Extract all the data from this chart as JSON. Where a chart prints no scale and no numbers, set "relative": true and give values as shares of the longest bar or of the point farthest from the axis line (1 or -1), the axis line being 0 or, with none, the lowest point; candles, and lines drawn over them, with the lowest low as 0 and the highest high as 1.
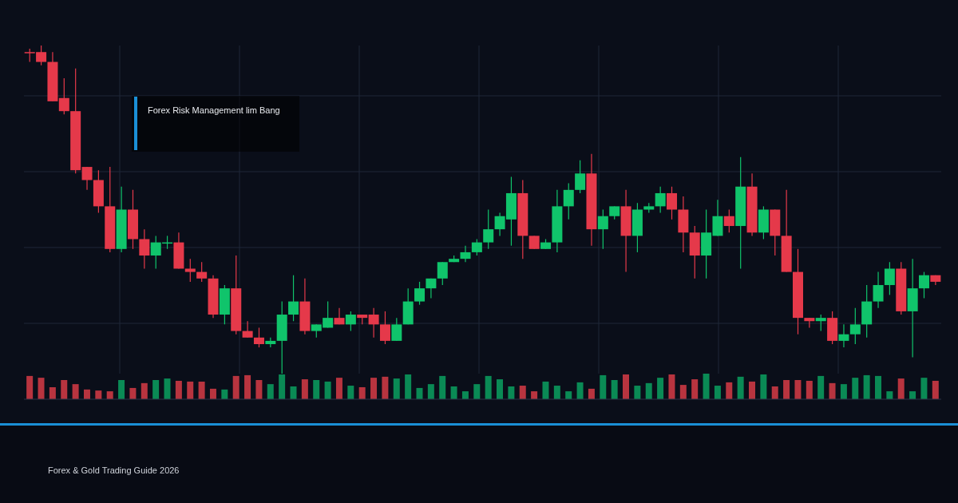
{
  "chart_data": [
    {
      "type": "candlestick",
      "title": "Forex Risk Management lim Bang",
      "subtitle": "Forex & Gold Trading Guide 2026",
      "relative": true,
      "grid": true,
      "categories": [
        null,
        null,
        null,
        null,
        null,
        null,
        null,
        null,
        null,
        null,
        null,
        null,
        null,
        null,
        null,
        null,
        null,
        null,
        null,
        null,
        null,
        null,
        null,
        null,
        null,
        null,
        null,
        null,
        null,
        null,
        null,
        null,
        null,
        null,
        null,
        null,
        null,
        null,
        null,
        null,
        null,
        null,
        null,
        null,
        null,
        null,
        null,
        null,
        null,
        null,
        null,
        null,
        null,
        null,
        null,
        null,
        null,
        null,
        null,
        null,
        null,
        null,
        null,
        null,
        null,
        null,
        null,
        null,
        null,
        null,
        null,
        null,
        null,
        null,
        null,
        null,
        null,
        null,
        null,
        null
      ],
      "ohlc": [
        [
          0.98,
          0.99,
          0.95,
          0.98
        ],
        [
          0.98,
          1.0,
          0.94,
          0.95
        ],
        [
          0.95,
          0.98,
          0.83,
          0.83
        ],
        [
          0.84,
          0.9,
          0.79,
          0.8
        ],
        [
          0.8,
          0.93,
          0.61,
          0.62
        ],
        [
          0.63,
          0.63,
          0.56,
          0.59
        ],
        [
          0.59,
          0.62,
          0.49,
          0.51
        ],
        [
          0.51,
          0.63,
          0.37,
          0.38
        ],
        [
          0.38,
          0.57,
          0.37,
          0.5
        ],
        [
          0.5,
          0.56,
          0.38,
          0.41
        ],
        [
          0.41,
          0.44,
          0.32,
          0.36
        ],
        [
          0.36,
          0.42,
          0.32,
          0.4
        ],
        [
          0.4,
          0.42,
          0.38,
          0.4
        ],
        [
          0.4,
          0.43,
          0.32,
          0.32
        ],
        [
          0.32,
          0.35,
          0.28,
          0.31
        ],
        [
          0.31,
          0.34,
          0.28,
          0.29
        ],
        [
          0.29,
          0.3,
          0.17,
          0.18
        ],
        [
          0.18,
          0.27,
          0.15,
          0.26
        ],
        [
          0.26,
          0.36,
          0.12,
          0.13
        ],
        [
          0.13,
          0.16,
          0.11,
          0.11
        ],
        [
          0.11,
          0.14,
          0.08,
          0.09
        ],
        [
          0.09,
          0.11,
          0.08,
          0.1
        ],
        [
          0.1,
          0.22,
          0.0,
          0.18
        ],
        [
          0.18,
          0.3,
          0.16,
          0.22
        ],
        [
          0.22,
          0.29,
          0.12,
          0.13
        ],
        [
          0.13,
          0.15,
          0.11,
          0.15
        ],
        [
          0.14,
          0.22,
          0.14,
          0.17
        ],
        [
          0.17,
          0.2,
          0.15,
          0.15
        ],
        [
          0.15,
          0.19,
          0.13,
          0.18
        ],
        [
          0.18,
          0.18,
          0.15,
          0.17
        ],
        [
          0.18,
          0.2,
          0.11,
          0.15
        ],
        [
          0.15,
          0.19,
          0.09,
          0.1
        ],
        [
          0.1,
          0.17,
          0.1,
          0.15
        ],
        [
          0.15,
          0.26,
          0.15,
          0.22
        ],
        [
          0.22,
          0.28,
          0.21,
          0.26
        ],
        [
          0.26,
          0.29,
          0.23,
          0.29
        ],
        [
          0.29,
          0.34,
          0.27,
          0.34
        ],
        [
          0.34,
          0.36,
          0.34,
          0.35
        ],
        [
          0.35,
          0.39,
          0.34,
          0.37
        ],
        [
          0.37,
          0.41,
          0.36,
          0.4
        ],
        [
          0.4,
          0.5,
          0.38,
          0.44
        ],
        [
          0.44,
          0.49,
          0.42,
          0.48
        ],
        [
          0.47,
          0.6,
          0.39,
          0.55
        ],
        [
          0.55,
          0.59,
          0.35,
          0.42
        ],
        [
          0.42,
          0.42,
          0.38,
          0.38
        ],
        [
          0.38,
          0.41,
          0.38,
          0.4
        ],
        [
          0.4,
          0.56,
          0.37,
          0.51
        ],
        [
          0.51,
          0.58,
          0.47,
          0.56
        ],
        [
          0.56,
          0.65,
          0.55,
          0.61
        ],
        [
          0.61,
          0.67,
          0.39,
          0.44
        ],
        [
          0.44,
          0.5,
          0.38,
          0.48
        ],
        [
          0.48,
          0.51,
          0.47,
          0.51
        ],
        [
          0.51,
          0.56,
          0.31,
          0.42
        ],
        [
          0.42,
          0.52,
          0.37,
          0.5
        ],
        [
          0.5,
          0.52,
          0.49,
          0.51
        ],
        [
          0.51,
          0.57,
          0.49,
          0.55
        ],
        [
          0.55,
          0.57,
          0.47,
          0.5
        ],
        [
          0.5,
          0.54,
          0.37,
          0.43
        ],
        [
          0.43,
          0.45,
          0.29,
          0.36
        ],
        [
          0.36,
          0.5,
          0.29,
          0.43
        ],
        [
          0.42,
          0.53,
          0.42,
          0.48
        ],
        [
          0.48,
          0.5,
          0.43,
          0.45
        ],
        [
          0.45,
          0.66,
          0.32,
          0.57
        ],
        [
          0.57,
          0.61,
          0.42,
          0.43
        ],
        [
          0.43,
          0.51,
          0.41,
          0.5
        ],
        [
          0.5,
          0.5,
          0.36,
          0.42
        ],
        [
          0.42,
          0.56,
          0.31,
          0.31
        ],
        [
          0.31,
          0.38,
          0.12,
          0.17
        ],
        [
          0.17,
          0.17,
          0.14,
          0.16
        ],
        [
          0.16,
          0.18,
          0.13,
          0.17
        ],
        [
          0.17,
          0.19,
          0.09,
          0.1
        ],
        [
          0.1,
          0.15,
          0.08,
          0.12
        ],
        [
          0.12,
          0.2,
          0.09,
          0.15
        ],
        [
          0.15,
          0.27,
          0.11,
          0.22
        ],
        [
          0.22,
          0.31,
          0.2,
          0.27
        ],
        [
          0.27,
          0.34,
          0.24,
          0.32
        ],
        [
          0.32,
          0.34,
          0.18,
          0.19
        ],
        [
          0.19,
          0.35,
          0.05,
          0.26
        ],
        [
          0.26,
          0.31,
          0.23,
          0.3
        ],
        [
          0.3,
          0.3,
          0.27,
          0.28
        ]
      ],
      "colors": [
        "#e5394a",
        "#e5394a",
        "#e5394a",
        "#e5394a",
        "#e5394a",
        "#e5394a",
        "#e5394a",
        "#e5394a",
        "#10c46b",
        "#e5394a",
        "#e5394a",
        "#10c46b",
        "#10c46b",
        "#e5394a",
        "#e5394a",
        "#e5394a",
        "#e5394a",
        "#10c46b",
        "#e5394a",
        "#e5394a",
        "#e5394a",
        "#10c46b",
        "#10c46b",
        "#10c46b",
        "#e5394a",
        "#10c46b",
        "#10c46b",
        "#e5394a",
        "#10c46b",
        "#e5394a",
        "#e5394a",
        "#e5394a",
        "#10c46b",
        "#10c46b",
        "#10c46b",
        "#10c46b",
        "#10c46b",
        "#10c46b",
        "#10c46b",
        "#10c46b",
        "#10c46b",
        "#10c46b",
        "#10c46b",
        "#e5394a",
        "#e5394a",
        "#10c46b",
        "#10c46b",
        "#10c46b",
        "#10c46b",
        "#e5394a",
        "#10c46b",
        "#10c46b",
        "#e5394a",
        "#10c46b",
        "#10c46b",
        "#10c46b",
        "#e5394a",
        "#e5394a",
        "#e5394a",
        "#10c46b",
        "#10c46b",
        "#e5394a",
        "#10c46b",
        "#e5394a",
        "#10c46b",
        "#e5394a",
        "#e5394a",
        "#e5394a",
        "#e5394a",
        "#10c46b",
        "#e5394a",
        "#10c46b",
        "#10c46b",
        "#10c46b",
        "#10c46b",
        "#10c46b",
        "#e5394a",
        "#10c46b",
        "#10c46b",
        "#e5394a"
      ]
    },
    {
      "type": "bar",
      "relative": true,
      "categories": [
        null,
        null,
        null,
        null,
        null,
        null,
        null,
        null,
        null,
        null,
        null,
        null,
        null,
        null,
        null,
        null,
        null,
        null,
        null,
        null,
        null,
        null,
        null,
        null,
        null,
        null,
        null,
        null,
        null,
        null,
        null,
        null,
        null,
        null,
        null,
        null,
        null,
        null,
        null,
        null,
        null,
        null,
        null,
        null,
        null,
        null,
        null,
        null,
        null,
        null,
        null,
        null,
        null,
        null,
        null,
        null,
        null,
        null,
        null,
        null,
        null,
        null,
        null,
        null,
        null,
        null,
        null,
        null,
        null,
        null,
        null,
        null,
        null,
        null,
        null,
        null,
        null,
        null,
        null,
        null
      ],
      "values": [
        0.91,
        0.84,
        0.47,
        0.75,
        0.59,
        0.38,
        0.34,
        0.31,
        0.75,
        0.44,
        0.63,
        0.75,
        0.81,
        0.72,
        0.69,
        0.69,
        0.41,
        0.38,
        0.91,
        0.94,
        0.75,
        0.59,
        0.97,
        0.5,
        0.78,
        0.75,
        0.69,
        0.84,
        0.53,
        0.47,
        0.84,
        0.88,
        0.81,
        0.97,
        0.44,
        0.59,
        0.91,
        0.5,
        0.31,
        0.59,
        0.91,
        0.78,
        0.5,
        0.53,
        0.31,
        0.69,
        0.53,
        0.31,
        0.66,
        0.41,
        0.94,
        0.75,
        0.97,
        0.53,
        0.63,
        0.84,
        0.97,
        0.56,
        0.78,
        1,
        0.53,
        0.66,
        0.88,
        0.69,
        0.97,
        0.5,
        0.75,
        0.75,
        0.72,
        0.91,
        0.63,
        0.59,
        0.84,
        0.94,
        0.91,
        0.31,
        0.81,
        0.31,
        0.84,
        0.72
      ],
      "colors": [
        "#b8343f",
        "#b8343f",
        "#b8343f",
        "#b8343f",
        "#b8343f",
        "#b8343f",
        "#b8343f",
        "#b8343f",
        "#0a8a55",
        "#b8343f",
        "#b8343f",
        "#0a8a55",
        "#0a8a55",
        "#b8343f",
        "#b8343f",
        "#b8343f",
        "#b8343f",
        "#0a8a55",
        "#b8343f",
        "#b8343f",
        "#b8343f",
        "#0a8a55",
        "#0a8a55",
        "#0a8a55",
        "#b8343f",
        "#0a8a55",
        "#0a8a55",
        "#b8343f",
        "#0a8a55",
        "#b8343f",
        "#b8343f",
        "#b8343f",
        "#0a8a55",
        "#0a8a55",
        "#0a8a55",
        "#0a8a55",
        "#0a8a55",
        "#0a8a55",
        "#0a8a55",
        "#0a8a55",
        "#0a8a55",
        "#0a8a55",
        "#0a8a55",
        "#b8343f",
        "#b8343f",
        "#0a8a55",
        "#0a8a55",
        "#0a8a55",
        "#0a8a55",
        "#b8343f",
        "#0a8a55",
        "#0a8a55",
        "#b8343f",
        "#0a8a55",
        "#0a8a55",
        "#0a8a55",
        "#b8343f",
        "#b8343f",
        "#b8343f",
        "#0a8a55",
        "#0a8a55",
        "#b8343f",
        "#0a8a55",
        "#b8343f",
        "#0a8a55",
        "#b8343f",
        "#b8343f",
        "#b8343f",
        "#b8343f",
        "#0a8a55",
        "#b8343f",
        "#0a8a55",
        "#0a8a55",
        "#0a8a55",
        "#0a8a55",
        "#0a8a55",
        "#b8343f",
        "#0a8a55",
        "#0a8a55",
        "#b8343f"
      ]
    }
  ]
}
